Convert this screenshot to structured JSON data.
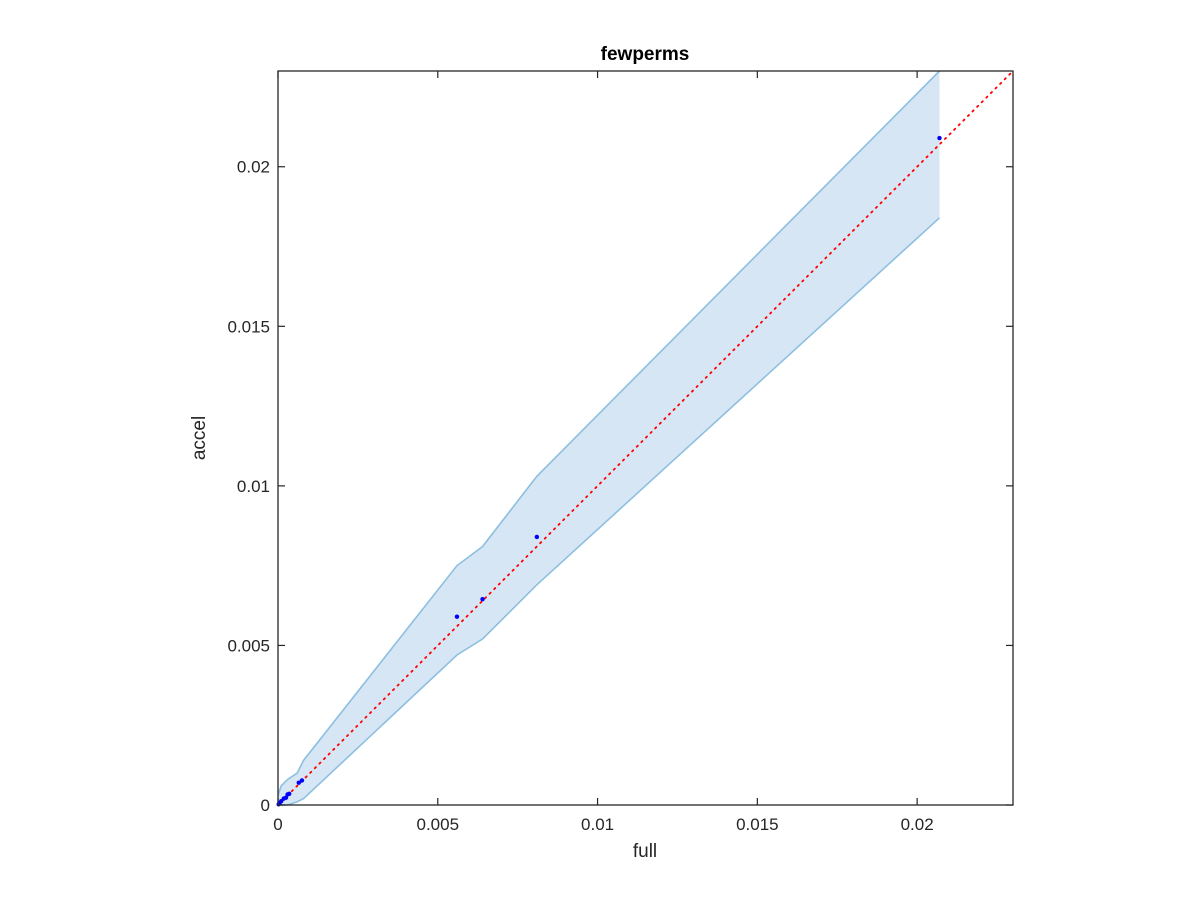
{
  "chart_data": {
    "type": "scatter",
    "title": "fewperms",
    "xlabel": "full",
    "ylabel": "accel",
    "xlim": [
      0,
      0.023
    ],
    "ylim": [
      0,
      0.023
    ],
    "grid": false,
    "legend": "none",
    "x_ticks": [
      0,
      0.005,
      0.01,
      0.015,
      0.02
    ],
    "x_tick_labels": [
      "0",
      "0.005",
      "0.01",
      "0.015",
      "0.02"
    ],
    "y_ticks": [
      0,
      0.005,
      0.01,
      0.015,
      0.02
    ],
    "y_tick_labels": [
      "0",
      "0.005",
      "0.01",
      "0.015",
      "0.02"
    ],
    "colors": {
      "points": "#0000ff",
      "reference_line": "#ff0000",
      "band_fill": "#d6e6f4",
      "band_edge": "#8cbfe0",
      "axes": "#262626"
    },
    "series": [
      {
        "type": "scatter",
        "x": [
          2e-05,
          5e-05,
          0.0001,
          0.00018,
          0.00025,
          0.0003,
          0.00035,
          0.00065,
          0.00075,
          0.0056,
          0.0064,
          0.0081,
          0.0207
        ],
        "y": [
          2e-05,
          6e-05,
          0.00012,
          0.0002,
          0.00023,
          0.00033,
          0.00035,
          0.0007,
          0.00077,
          0.0059,
          0.00645,
          0.0084,
          0.0209
        ]
      },
      {
        "type": "line",
        "style": "dotted",
        "x": [
          0,
          0.023
        ],
        "y": [
          0,
          0.023
        ]
      },
      {
        "type": "area",
        "x": [
          0,
          0.0001,
          0.0003,
          0.0006,
          0.0008,
          0.0056,
          0.0064,
          0.0081,
          0.0207
        ],
        "upper": [
          0.0003,
          0.0006,
          0.0008,
          0.001,
          0.0014,
          0.0075,
          0.0081,
          0.0103,
          0.023
        ],
        "lower": [
          0,
          0,
          0,
          0.0001,
          0.0002,
          0.0047,
          0.0052,
          0.0069,
          0.0184
        ]
      }
    ]
  }
}
